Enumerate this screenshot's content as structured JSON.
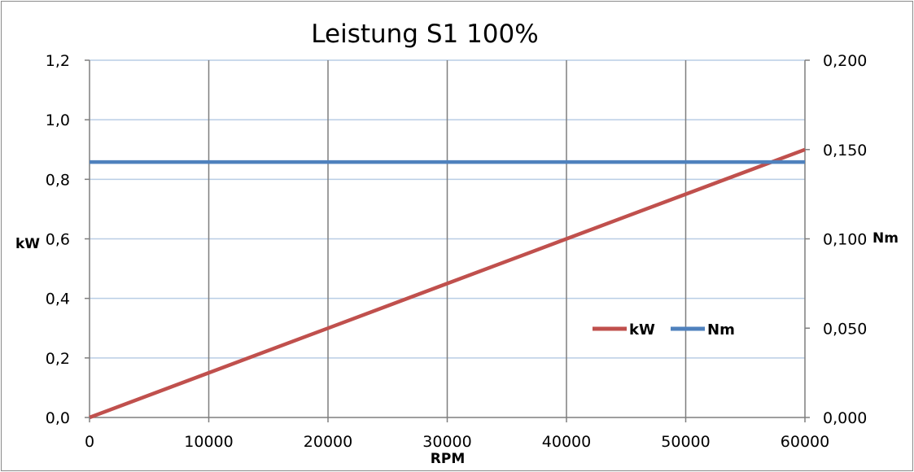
{
  "chart_data": {
    "type": "line",
    "title": "Leistung S1 100%",
    "xlabel": "RPM",
    "ylabel_left": "kW",
    "ylabel_right": "Nm",
    "xlim": [
      0,
      60000
    ],
    "ylim_left": [
      0,
      1.2
    ],
    "ylim_right": [
      0,
      0.2
    ],
    "x_ticks": [
      0,
      10000,
      20000,
      30000,
      40000,
      50000,
      60000
    ],
    "x_tick_labels": [
      "0",
      "10000",
      "20000",
      "30000",
      "40000",
      "50000",
      "60000"
    ],
    "y_left_ticks": [
      0,
      0.2,
      0.4,
      0.6,
      0.8,
      1.0,
      1.2
    ],
    "y_left_tick_labels": [
      "0,0",
      "0,2",
      "0,4",
      "0,6",
      "0,8",
      "1,0",
      "1,2"
    ],
    "y_right_ticks": [
      0,
      0.05,
      0.1,
      0.15,
      0.2
    ],
    "y_right_tick_labels": [
      "0,000",
      "0,050",
      "0,100",
      "0,150",
      "0,200"
    ],
    "grid": true,
    "legend_position": "right-center",
    "series": [
      {
        "name": "kW",
        "axis": "left",
        "color": "#c0504d",
        "x": [
          0,
          10000,
          20000,
          30000,
          40000,
          50000,
          60000
        ],
        "values": [
          0,
          0.15,
          0.3,
          0.45,
          0.6,
          0.75,
          0.9
        ]
      },
      {
        "name": "Nm",
        "axis": "right",
        "color": "#4f81bd",
        "x": [
          0,
          60000
        ],
        "values": [
          0.143,
          0.143
        ]
      }
    ]
  }
}
